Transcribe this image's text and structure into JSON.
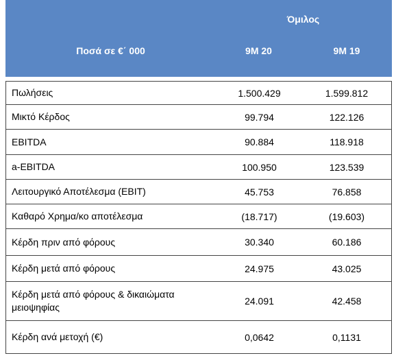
{
  "header": {
    "group": "Όμιλος",
    "label": "Ποσά  σε €΄ 000",
    "columns": [
      "9M 20",
      "9M 19"
    ]
  },
  "table": {
    "rows": [
      [
        "Πωλήσεις",
        "1.500.429",
        "1.599.812"
      ],
      [
        "Μικτό Κέρδος",
        "99.794",
        "122.126"
      ],
      [
        "EBITDA",
        "90.884",
        "118.918"
      ],
      [
        "a-EBITDA",
        "100.950",
        "123.539"
      ],
      [
        "Λειτουργικό Αποτέλεσμα (EBIT)",
        "45.753",
        "76.858"
      ],
      [
        "Καθαρό Χρημα/κο αποτέλεσμα",
        "(18.717)",
        "(19.603)"
      ],
      [
        "Κέρδη πριν από φόρους",
        "30.340",
        "60.186"
      ],
      [
        "Κέρδη μετά από φόρους",
        "24.975",
        "43.025"
      ],
      [
        "Κέρδη μετά από φόρους & δικαιώματα μειοψηφίας",
        "24.091",
        "42.458"
      ],
      [
        "Κέρδη ανά μετοχή (€)",
        "0,0642",
        "0,1131"
      ]
    ]
  }
}
